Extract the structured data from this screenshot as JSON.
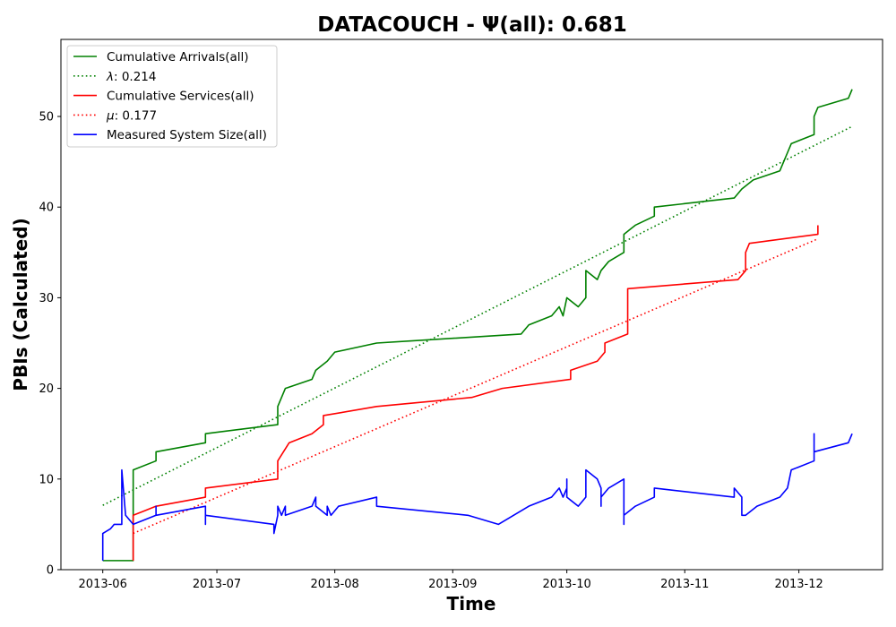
{
  "chart_data": {
    "type": "line",
    "title": "DATACOUCH -  Ψ(all): 0.681",
    "xlabel": "Time",
    "ylabel": "PBIs (Calculated)",
    "xlim": [
      "2013-05-21",
      "2013-12-23"
    ],
    "ylim": [
      0,
      58.5
    ],
    "x_ticks": [
      "2013-06-01",
      "2013-07-01",
      "2013-08-01",
      "2013-09-01",
      "2013-10-01",
      "2013-11-01",
      "2013-12-01"
    ],
    "x_tick_labels": [
      "2013-06",
      "2013-07",
      "2013-08",
      "2013-09",
      "2013-10",
      "2013-11",
      "2013-12"
    ],
    "y_ticks": [
      0,
      10,
      20,
      30,
      40,
      50
    ],
    "y_tick_labels": [
      "0",
      "10",
      "20",
      "30",
      "40",
      "50"
    ],
    "grid": false,
    "legend_position": "top-left",
    "legend": [
      {
        "label": "Cumulative Arrivals(all)",
        "color": "#008000",
        "style": "solid"
      },
      {
        "label": "λ: 0.214",
        "color": "#008000",
        "style": "dotted"
      },
      {
        "label": "Cumulative Services(all)",
        "color": "#ff0000",
        "style": "solid"
      },
      {
        "label": "μ: 0.177",
        "color": "#ff0000",
        "style": "dotted"
      },
      {
        "label": "Measured System Size(all)",
        "color": "#0000ff",
        "style": "solid"
      }
    ],
    "series": [
      {
        "name": "Cumulative Arrivals(all)",
        "color": "#008000",
        "style": "solid",
        "points": [
          [
            "2013-06-01",
            1
          ],
          [
            "2013-06-09",
            1
          ],
          [
            "2013-06-09",
            11
          ],
          [
            "2013-06-15",
            12
          ],
          [
            "2013-06-15",
            13
          ],
          [
            "2013-06-28",
            14
          ],
          [
            "2013-06-28",
            15
          ],
          [
            "2013-07-17",
            16
          ],
          [
            "2013-07-17",
            18
          ],
          [
            "2013-07-19",
            20
          ],
          [
            "2013-07-26",
            21
          ],
          [
            "2013-07-27",
            22
          ],
          [
            "2013-07-30",
            23
          ],
          [
            "2013-08-01",
            24
          ],
          [
            "2013-08-12",
            25
          ],
          [
            "2013-09-19",
            26
          ],
          [
            "2013-09-21",
            27
          ],
          [
            "2013-09-27",
            28
          ],
          [
            "2013-09-29",
            29
          ],
          [
            "2013-09-30",
            28
          ],
          [
            "2013-10-01",
            30
          ],
          [
            "2013-10-04",
            29
          ],
          [
            "2013-10-06",
            30
          ],
          [
            "2013-10-06",
            33
          ],
          [
            "2013-10-09",
            32
          ],
          [
            "2013-10-10",
            33
          ],
          [
            "2013-10-12",
            34
          ],
          [
            "2013-10-16",
            35
          ],
          [
            "2013-10-16",
            37
          ],
          [
            "2013-10-19",
            38
          ],
          [
            "2013-10-24",
            39
          ],
          [
            "2013-10-24",
            40
          ],
          [
            "2013-11-14",
            41
          ],
          [
            "2013-11-16",
            42
          ],
          [
            "2013-11-19",
            43
          ],
          [
            "2013-11-26",
            44
          ],
          [
            "2013-11-27",
            45
          ],
          [
            "2013-11-28",
            46
          ],
          [
            "2013-11-29",
            47
          ],
          [
            "2013-12-05",
            48
          ],
          [
            "2013-12-05",
            50
          ],
          [
            "2013-12-06",
            51
          ],
          [
            "2013-12-14",
            52
          ],
          [
            "2013-12-15",
            53
          ]
        ]
      },
      {
        "name": "λ: 0.214",
        "color": "#008000",
        "style": "dotted",
        "points": [
          [
            "2013-06-01",
            7.1
          ],
          [
            "2013-12-15",
            48.9
          ]
        ]
      },
      {
        "name": "Cumulative Services(all)",
        "color": "#ff0000",
        "style": "solid",
        "points": [
          [
            "2013-06-09",
            1
          ],
          [
            "2013-06-09",
            6
          ],
          [
            "2013-06-12",
            6.5
          ],
          [
            "2013-06-15",
            7
          ],
          [
            "2013-06-28",
            8
          ],
          [
            "2013-06-28",
            9
          ],
          [
            "2013-07-17",
            10
          ],
          [
            "2013-07-17",
            12
          ],
          [
            "2013-07-20",
            14
          ],
          [
            "2013-07-26",
            15
          ],
          [
            "2013-07-29",
            16
          ],
          [
            "2013-07-29",
            17
          ],
          [
            "2013-08-12",
            18
          ],
          [
            "2013-09-06",
            19
          ],
          [
            "2013-09-14",
            20
          ],
          [
            "2013-10-02",
            21
          ],
          [
            "2013-10-02",
            22
          ],
          [
            "2013-10-09",
            23
          ],
          [
            "2013-10-11",
            24
          ],
          [
            "2013-10-11",
            25
          ],
          [
            "2013-10-17",
            26
          ],
          [
            "2013-10-17",
            31
          ],
          [
            "2013-11-15",
            32
          ],
          [
            "2013-11-17",
            33
          ],
          [
            "2013-11-17",
            35
          ],
          [
            "2013-11-18",
            36
          ],
          [
            "2013-12-06",
            37
          ],
          [
            "2013-12-06",
            38
          ]
        ]
      },
      {
        "name": "μ: 0.177",
        "color": "#ff0000",
        "style": "dotted",
        "points": [
          [
            "2013-06-09",
            4
          ],
          [
            "2013-12-06",
            36.5
          ]
        ]
      },
      {
        "name": "Measured System Size(all)",
        "color": "#0000ff",
        "style": "solid",
        "points": [
          [
            "2013-06-01",
            1
          ],
          [
            "2013-06-01",
            4
          ],
          [
            "2013-06-03",
            4.5
          ],
          [
            "2013-06-04",
            5
          ],
          [
            "2013-06-06",
            5
          ],
          [
            "2013-06-06",
            11
          ],
          [
            "2013-06-07",
            6
          ],
          [
            "2013-06-09",
            5
          ],
          [
            "2013-06-15",
            6
          ],
          [
            "2013-06-15",
            7
          ],
          [
            "2013-06-15",
            6
          ],
          [
            "2013-06-28",
            7
          ],
          [
            "2013-06-28",
            5
          ],
          [
            "2013-06-28",
            6
          ],
          [
            "2013-07-16",
            5
          ],
          [
            "2013-07-16",
            4
          ],
          [
            "2013-07-17",
            6
          ],
          [
            "2013-07-17",
            7
          ],
          [
            "2013-07-18",
            6
          ],
          [
            "2013-07-19",
            7
          ],
          [
            "2013-07-19",
            6
          ],
          [
            "2013-07-26",
            7
          ],
          [
            "2013-07-27",
            8
          ],
          [
            "2013-07-27",
            7
          ],
          [
            "2013-07-30",
            6
          ],
          [
            "2013-07-30",
            7
          ],
          [
            "2013-07-31",
            6
          ],
          [
            "2013-08-02",
            7
          ],
          [
            "2013-08-12",
            8
          ],
          [
            "2013-08-12",
            7
          ],
          [
            "2013-09-05",
            6
          ],
          [
            "2013-09-13",
            5
          ],
          [
            "2013-09-17",
            6
          ],
          [
            "2013-09-21",
            7
          ],
          [
            "2013-09-27",
            8
          ],
          [
            "2013-09-29",
            9
          ],
          [
            "2013-09-30",
            8
          ],
          [
            "2013-10-01",
            9
          ],
          [
            "2013-10-01",
            10
          ],
          [
            "2013-10-01",
            8
          ],
          [
            "2013-10-04",
            7
          ],
          [
            "2013-10-06",
            8
          ],
          [
            "2013-10-06",
            11
          ],
          [
            "2013-10-09",
            10
          ],
          [
            "2013-10-10",
            9
          ],
          [
            "2013-10-10",
            7
          ],
          [
            "2013-10-10",
            8
          ],
          [
            "2013-10-12",
            9
          ],
          [
            "2013-10-16",
            10
          ],
          [
            "2013-10-16",
            5
          ],
          [
            "2013-10-16",
            6
          ],
          [
            "2013-10-19",
            7
          ],
          [
            "2013-10-24",
            8
          ],
          [
            "2013-10-24",
            9
          ],
          [
            "2013-11-14",
            8
          ],
          [
            "2013-11-14",
            9
          ],
          [
            "2013-11-15",
            8.5
          ],
          [
            "2013-11-16",
            8
          ],
          [
            "2013-11-16",
            6
          ],
          [
            "2013-11-17",
            6
          ],
          [
            "2013-11-20",
            7
          ],
          [
            "2013-11-26",
            8
          ],
          [
            "2013-11-28",
            9
          ],
          [
            "2013-11-29",
            11
          ],
          [
            "2013-12-05",
            12
          ],
          [
            "2013-12-05",
            15
          ],
          [
            "2013-12-05",
            13
          ],
          [
            "2013-12-14",
            14
          ],
          [
            "2013-12-15",
            15
          ]
        ]
      }
    ]
  }
}
